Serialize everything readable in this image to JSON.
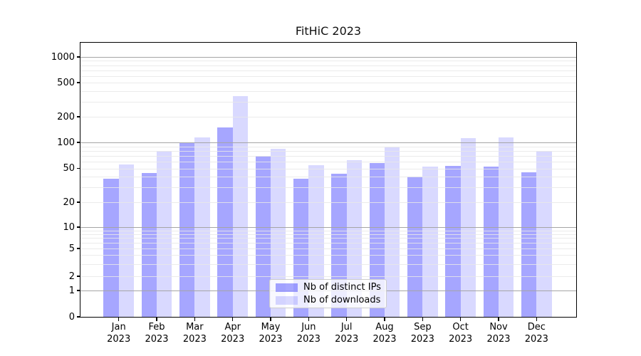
{
  "title": "FitHiC 2023",
  "chart_data": {
    "type": "bar",
    "title": "FitHiC 2023",
    "categories": [
      "Jan 2023",
      "Feb 2023",
      "Mar 2023",
      "Apr 2023",
      "May 2023",
      "Jun 2023",
      "Jul 2023",
      "Aug 2023",
      "Sep 2023",
      "Oct 2023",
      "Nov 2023",
      "Dec 2023"
    ],
    "series": [
      {
        "name": "Nb of distinct IPs",
        "color": "rgba(0,0,255,0.35)",
        "values": [
          38,
          44,
          100,
          150,
          70,
          38,
          43,
          58,
          40,
          53,
          52,
          45
        ]
      },
      {
        "name": "Nb of downloads",
        "color": "rgba(0,0,255,0.15)",
        "values": [
          56,
          80,
          115,
          350,
          85,
          54,
          62,
          88,
          52,
          112,
          114,
          80
        ]
      }
    ],
    "xlabel": "",
    "ylabel": "",
    "yscale": "symlog",
    "y_ticks": [
      0,
      1,
      2,
      5,
      10,
      20,
      50,
      100,
      200,
      500,
      1000
    ],
    "y_minor_gridlines": [
      3,
      4,
      6,
      7,
      8,
      9,
      30,
      40,
      60,
      70,
      80,
      90,
      300,
      400,
      600,
      700,
      800,
      900
    ],
    "ylim": [
      0,
      1470
    ],
    "grid": true,
    "grid_over_bars": true,
    "legend_position": "lower center"
  },
  "legend": {
    "items": [
      {
        "label": "Nb of distinct IPs",
        "swatch_color": "rgba(0,0,255,0.35)"
      },
      {
        "label": "Nb of downloads",
        "swatch_color": "rgba(0,0,255,0.15)"
      }
    ]
  },
  "colors": {
    "background": "#ffffff",
    "spine": "#000000",
    "major_grid": "#a5a5a5",
    "minor_grid": "#e7e7e7",
    "legend_border": "#cccccc"
  }
}
